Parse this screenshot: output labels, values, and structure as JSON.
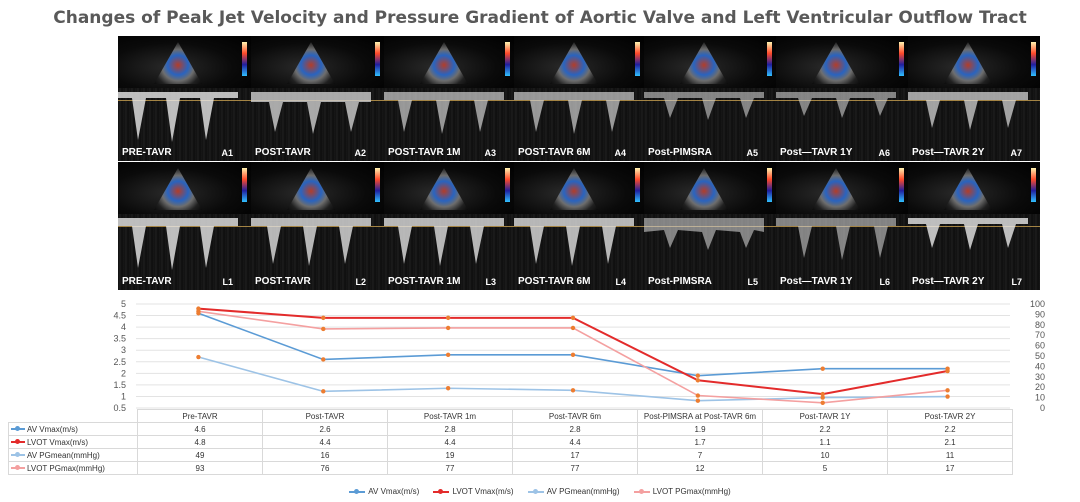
{
  "title": "Changes of Peak Jet Velocity and Pressure Gradient of Aortic Valve and  Left Ventricular Outflow Tract",
  "panels_top": [
    {
      "label": "PRE-TAVR",
      "id": "A1"
    },
    {
      "label": "POST-TAVR",
      "id": "A2"
    },
    {
      "label": "POST-TAVR 1M",
      "id": "A3"
    },
    {
      "label": "POST-TAVR 6M",
      "id": "A4"
    },
    {
      "label": "Post-PIMSRA",
      "id": "A5"
    },
    {
      "label": "Post—TAVR 1Y",
      "id": "A6"
    },
    {
      "label": "Post—TAVR 2Y",
      "id": "A7"
    }
  ],
  "panels_bottom": [
    {
      "label": "PRE-TAVR",
      "id": "L1"
    },
    {
      "label": "POST-TAVR",
      "id": "L2"
    },
    {
      "label": "POST-TAVR 1M",
      "id": "L3"
    },
    {
      "label": "POST-TAVR 6M",
      "id": "L4"
    },
    {
      "label": "Post-PIMSRA",
      "id": "L5"
    },
    {
      "label": "Post—TAVR 1Y",
      "id": "L6"
    },
    {
      "label": "Post—TAVR 2Y",
      "id": "L7"
    }
  ],
  "chart_data": {
    "type": "line",
    "categories": [
      "Pre-TAVR",
      "Post-TAVR",
      "Post-TAVR 1m",
      "Post-TAVR 6m",
      "Post-PIMSRA at Post-TAVR 6m",
      "Post-TAVR 1Y",
      "Post-TAVR 2Y"
    ],
    "y_left_ticks": [
      "5",
      "4.5",
      "4",
      "3.5",
      "3",
      "2.5",
      "2",
      "1.5",
      "1",
      "0.5"
    ],
    "y_right_ticks": [
      "100",
      "90",
      "80",
      "70",
      "60",
      "50",
      "40",
      "30",
      "20",
      "10",
      "0"
    ],
    "y_left_range": [
      0.5,
      5
    ],
    "y_right_range": [
      0,
      100
    ],
    "series": [
      {
        "name": "AV Vmax(m/s)",
        "axis": "left",
        "color": "#5b9bd5",
        "values": [
          4.6,
          2.6,
          2.8,
          2.8,
          1.9,
          2.2,
          2.2
        ],
        "labels": [
          "4.6",
          "2.6",
          "2.8",
          "2.8",
          "1.9",
          "2.2",
          "2.2"
        ]
      },
      {
        "name": "LVOT Vmax(m/s)",
        "axis": "left",
        "color": "#e32b2b",
        "values": [
          4.8,
          4.4,
          4.4,
          4.4,
          1.7,
          1.1,
          2.1
        ],
        "labels": [
          "4.8",
          "4.4",
          "4.4",
          "4.4",
          "1.7",
          "1.1",
          "2.1"
        ]
      },
      {
        "name": "AV PGmean(mmHg)",
        "axis": "right",
        "color": "#9dc3e6",
        "values": [
          49,
          16,
          19,
          17,
          7,
          10,
          11
        ],
        "labels": [
          "49",
          "16",
          "19",
          "17",
          "7",
          "10",
          "11"
        ]
      },
      {
        "name": "LVOT PGmax(mmHg)",
        "axis": "right",
        "color": "#f4a0a0",
        "values": [
          93,
          76,
          77,
          77,
          12,
          5,
          17
        ],
        "labels": [
          "93",
          "76",
          "77",
          "77",
          "12",
          "5",
          "17"
        ]
      }
    ],
    "legend": [
      "AV Vmax(m/s)",
      "LVOT Vmax(m/s)",
      "AV PGmean(mmHg)",
      "LVOT PGmax(mmHg)"
    ],
    "marker_color": "#ed7d31"
  }
}
